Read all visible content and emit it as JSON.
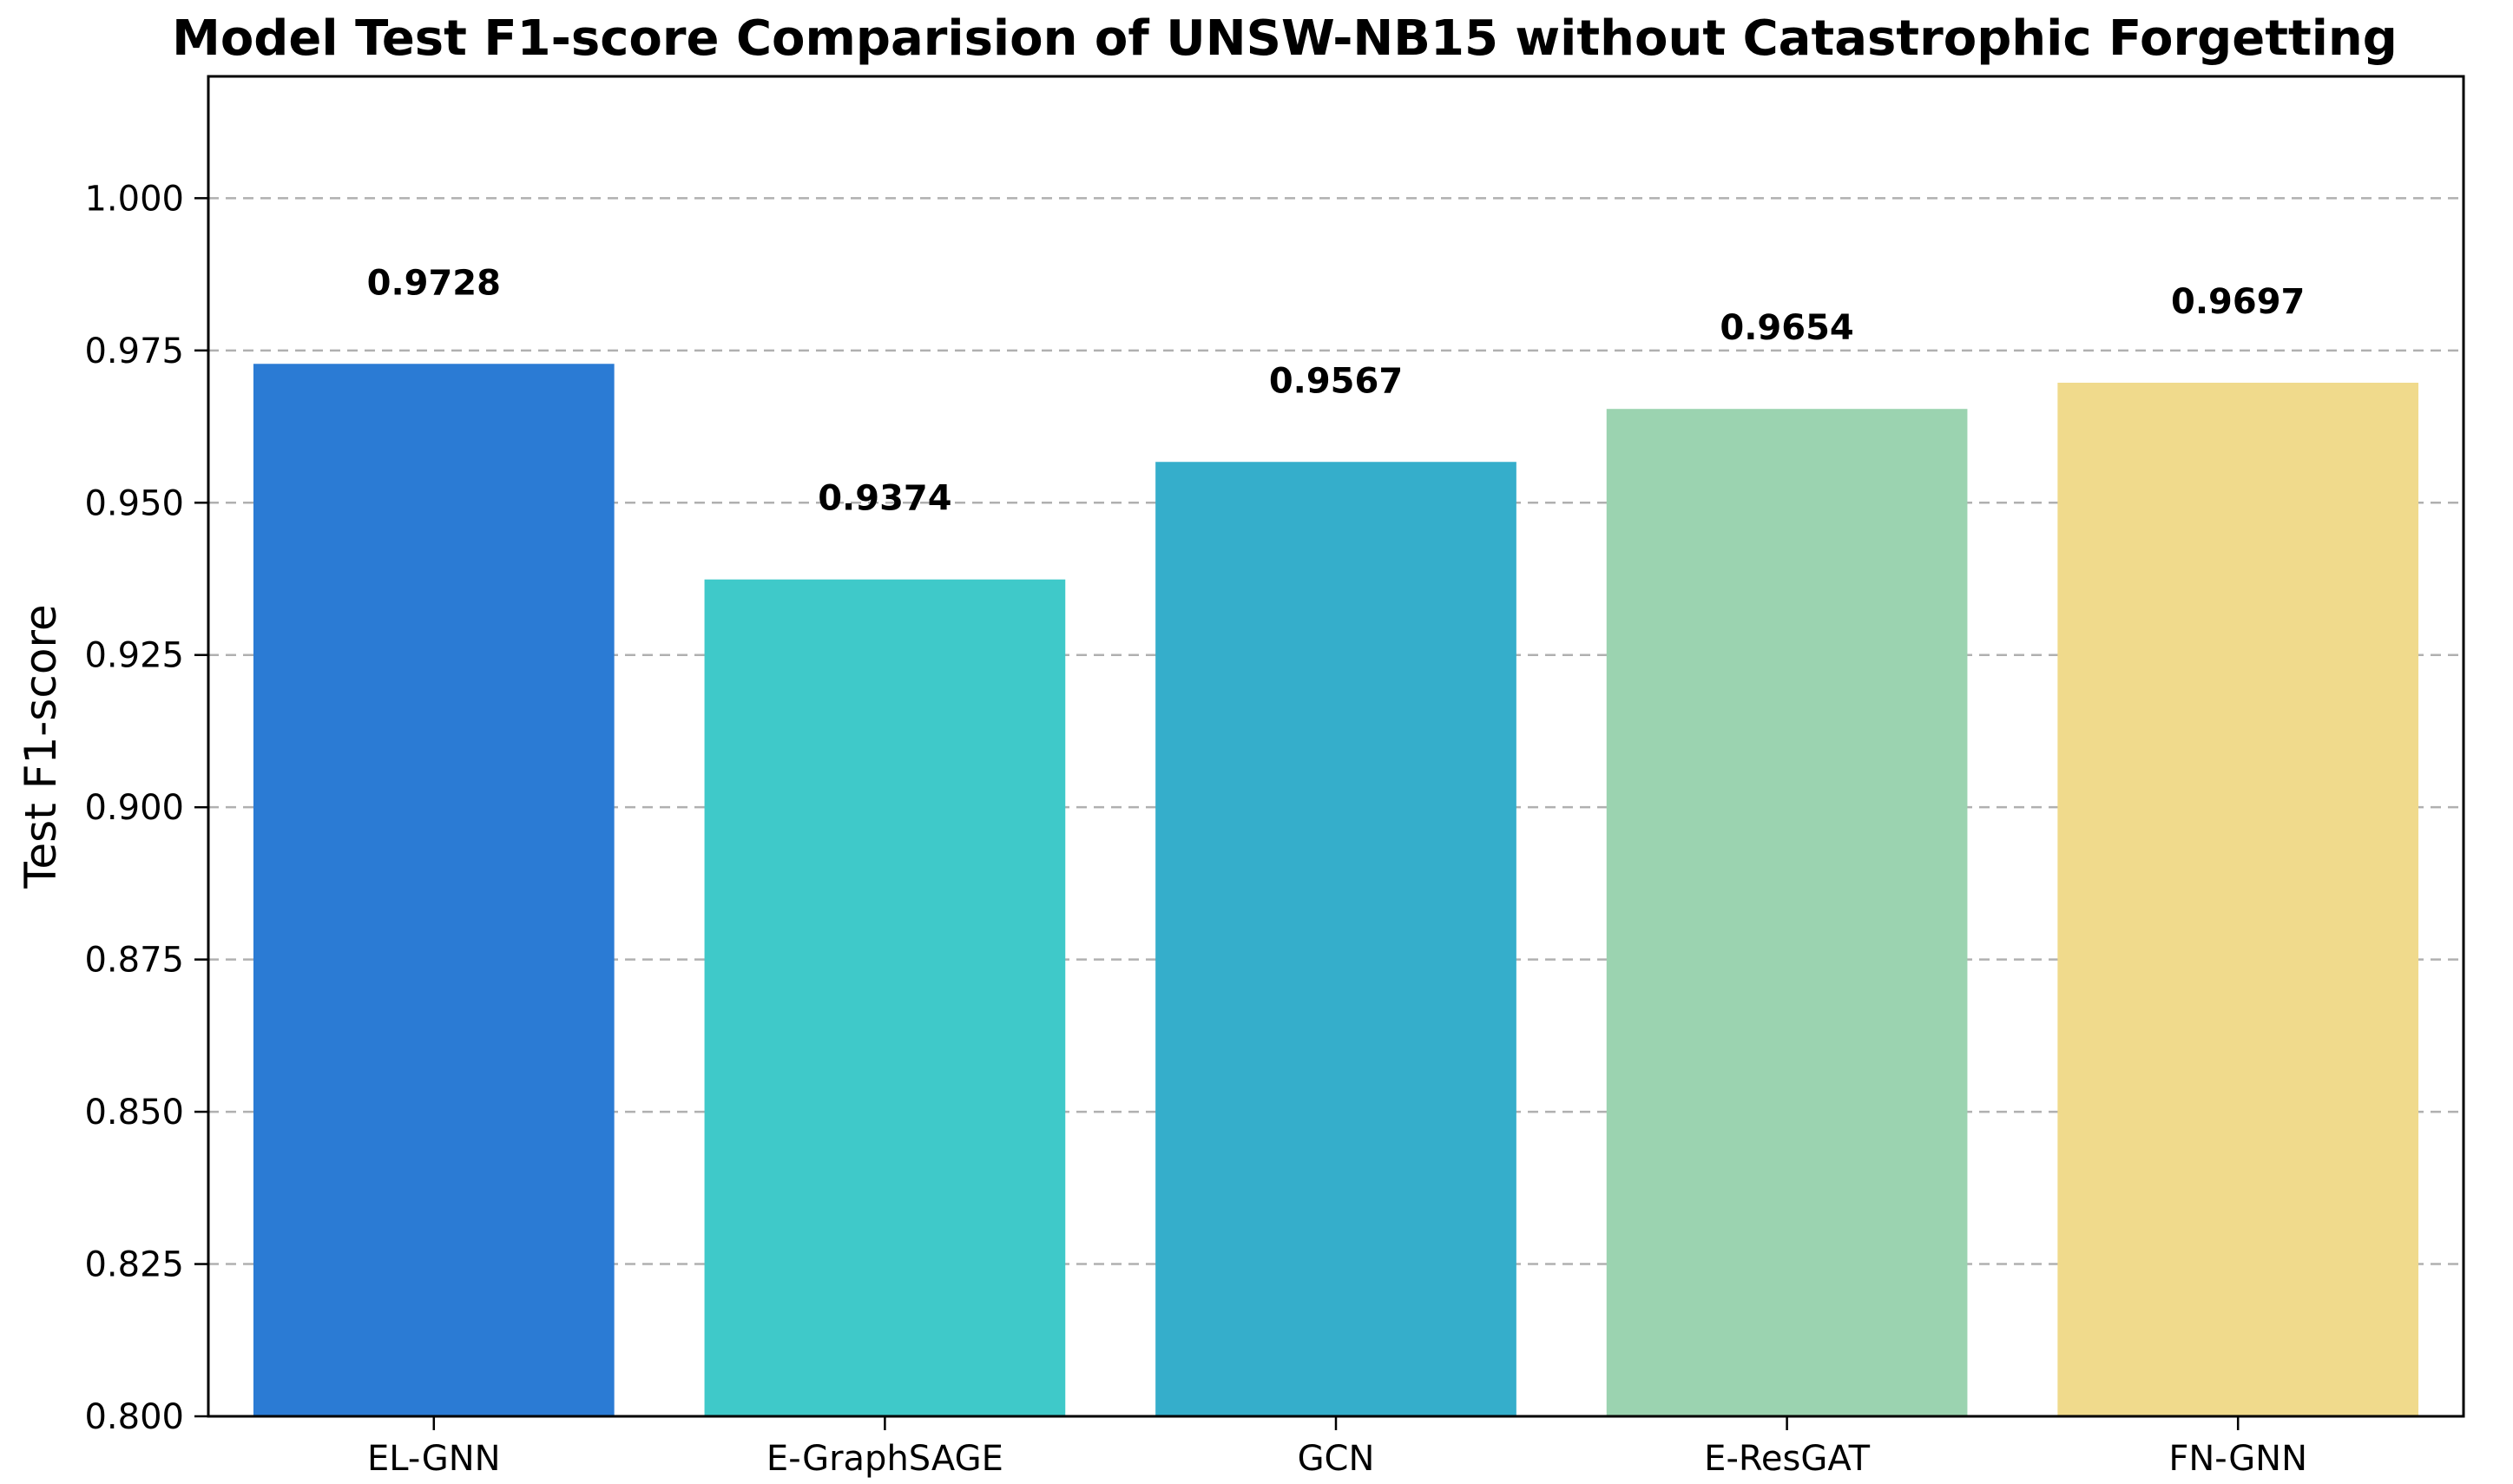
{
  "chart_data": {
    "type": "bar",
    "title": "Model Test F1-score Comparision of UNSW-NB15 without Catastrophic Forgetting",
    "xlabel": "",
    "ylabel": "Test F1-score",
    "categories": [
      "EL-GNN",
      "E-GraphSAGE",
      "GCN",
      "E-ResGAT",
      "FN-GNN"
    ],
    "values": [
      0.9728,
      0.9374,
      0.9567,
      0.9654,
      0.9697
    ],
    "value_labels": [
      "0.9728",
      "0.9374",
      "0.9567",
      "0.9654",
      "0.9697"
    ],
    "colors": [
      "#2b7bd4",
      "#3fc9c9",
      "#35aecb",
      "#9bd3b0",
      "#f0da8c"
    ],
    "ylim": [
      0.8,
      1.02
    ],
    "yticks": [
      0.8,
      0.825,
      0.85,
      0.875,
      0.9,
      0.925,
      0.95,
      0.975,
      1.0
    ],
    "ytick_labels": [
      "0.800",
      "0.825",
      "0.850",
      "0.875",
      "0.900",
      "0.925",
      "0.950",
      "0.975",
      "1.000"
    ],
    "grid": "y-dashed",
    "legend": "none"
  }
}
